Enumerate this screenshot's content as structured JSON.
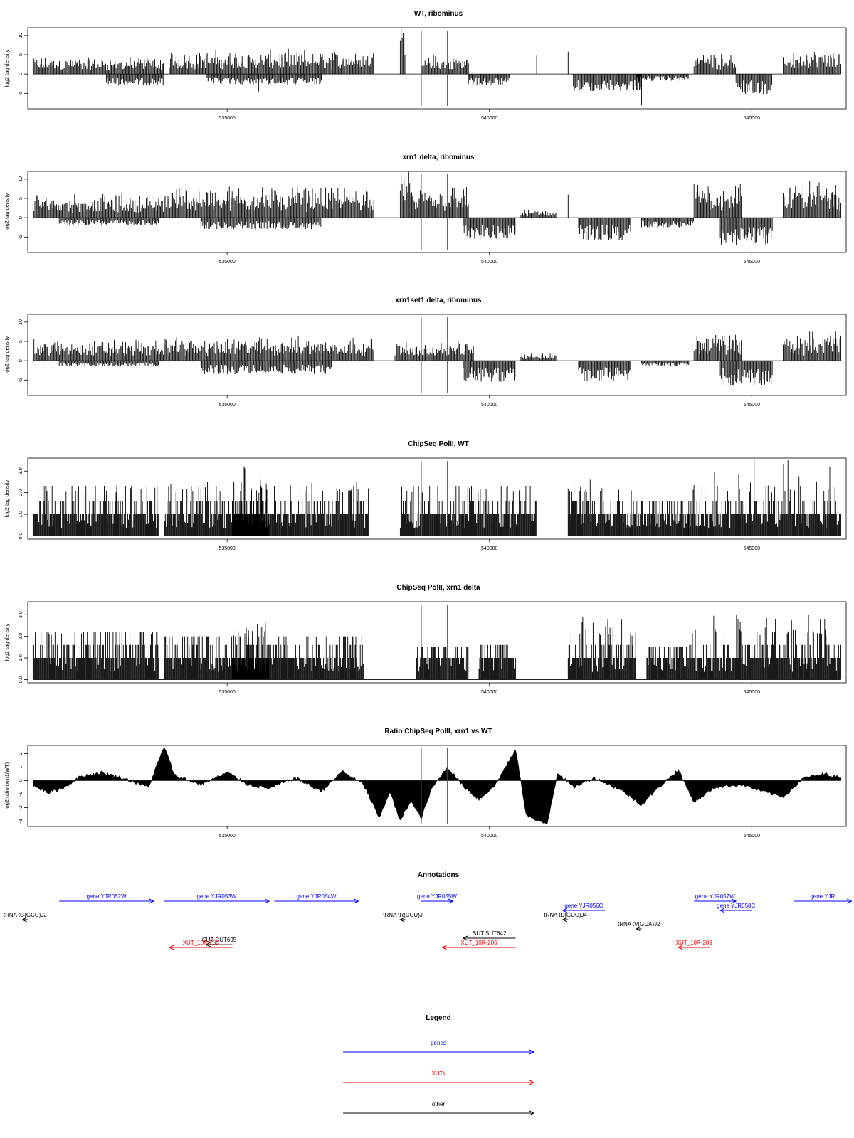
{
  "chart_data": [
    {
      "type": "bar",
      "title": "WT, ribominus",
      "ylabel": "log2 tag density",
      "ylim": [
        -9,
        12
      ],
      "y_ticks": [
        "-5",
        "0",
        "5",
        "10"
      ],
      "xlim": [
        531200,
        546800
      ],
      "x_ticks": [
        "535000",
        "540000",
        "545000"
      ],
      "vlines": [
        538700,
        539200
      ],
      "series": [
        {
          "segments": [
            {
              "start": 531300,
              "end": 533800,
              "mode": "pos",
              "hi": 3.2
            },
            {
              "start": 532700,
              "end": 533800,
              "mode": "neg",
              "hi": 3.0
            },
            {
              "start": 533900,
              "end": 537800,
              "mode": "pos",
              "hi": 4.5
            },
            {
              "start": 534600,
              "end": 536800,
              "mode": "neg",
              "hi": 2.8
            },
            {
              "start": 538300,
              "end": 538400,
              "mode": "pos",
              "hi": 9.0
            },
            {
              "start": 538700,
              "end": 539600,
              "mode": "pos",
              "hi": 3.5
            },
            {
              "start": 539600,
              "end": 540400,
              "mode": "neg",
              "hi": 3.0
            },
            {
              "start": 541600,
              "end": 542900,
              "mode": "neg",
              "hi": 4.5
            },
            {
              "start": 542800,
              "end": 543800,
              "mode": "neg",
              "hi": 1.8
            },
            {
              "start": 543900,
              "end": 544700,
              "mode": "pos",
              "hi": 4.5
            },
            {
              "start": 544700,
              "end": 545400,
              "mode": "neg",
              "hi": 5.2
            },
            {
              "start": 545600,
              "end": 546700,
              "mode": "pos",
              "hi": 4.5
            }
          ],
          "spikes": [
            [
              540900,
              4.8
            ],
            [
              541500,
              5.8
            ],
            [
              542900,
              -8.0
            ],
            [
              535600,
              -4.5
            ]
          ]
        }
      ]
    },
    {
      "type": "bar",
      "title": "xrn1 delta, ribominus",
      "ylabel": "log2 tag density",
      "ylim": [
        -9,
        12
      ],
      "y_ticks": [
        "-5",
        "0",
        "5",
        "10"
      ],
      "xlim": [
        531200,
        546800
      ],
      "x_ticks": [
        "535000",
        "540000",
        "545000"
      ],
      "vlines": [
        538700,
        539200
      ],
      "series": [
        {
          "segments": [
            {
              "start": 531300,
              "end": 533800,
              "mode": "pos",
              "hi": 4.5
            },
            {
              "start": 531800,
              "end": 533700,
              "mode": "neg",
              "hi": 2.0
            },
            {
              "start": 533800,
              "end": 537800,
              "mode": "pos",
              "hi": 6.0
            },
            {
              "start": 534500,
              "end": 536800,
              "mode": "neg",
              "hi": 3.0
            },
            {
              "start": 538300,
              "end": 538500,
              "mode": "pos",
              "hi": 10.5
            },
            {
              "start": 538500,
              "end": 539600,
              "mode": "pos",
              "hi": 6.0
            },
            {
              "start": 539500,
              "end": 540500,
              "mode": "neg",
              "hi": 5.5
            },
            {
              "start": 540600,
              "end": 541300,
              "mode": "pos",
              "hi": 1.5
            },
            {
              "start": 541700,
              "end": 542700,
              "mode": "neg",
              "hi": 6.0
            },
            {
              "start": 542900,
              "end": 543900,
              "mode": "neg",
              "hi": 2.5
            },
            {
              "start": 543900,
              "end": 544800,
              "mode": "pos",
              "hi": 7.0
            },
            {
              "start": 544400,
              "end": 545400,
              "mode": "neg",
              "hi": 7.0
            },
            {
              "start": 545600,
              "end": 546700,
              "mode": "pos",
              "hi": 7.0
            }
          ],
          "spikes": [
            [
              541500,
              6.0
            ],
            [
              546600,
              8.5
            ]
          ]
        }
      ]
    },
    {
      "type": "bar",
      "title": "xrn1set1 delta, ribominus",
      "ylabel": "log2 tag density",
      "ylim": [
        -9,
        12
      ],
      "y_ticks": [
        "-5",
        "0",
        "5",
        "10"
      ],
      "xlim": [
        531200,
        546800
      ],
      "x_ticks": [
        "535000",
        "540000",
        "545000"
      ],
      "vlines": [
        538700,
        539200
      ],
      "series": [
        {
          "segments": [
            {
              "start": 531300,
              "end": 533800,
              "mode": "pos",
              "hi": 4.0
            },
            {
              "start": 531800,
              "end": 533700,
              "mode": "neg",
              "hi": 1.5
            },
            {
              "start": 533800,
              "end": 537800,
              "mode": "pos",
              "hi": 4.5
            },
            {
              "start": 534500,
              "end": 537000,
              "mode": "neg",
              "hi": 3.5
            },
            {
              "start": 538200,
              "end": 539700,
              "mode": "pos",
              "hi": 3.5
            },
            {
              "start": 539500,
              "end": 540500,
              "mode": "neg",
              "hi": 5.5
            },
            {
              "start": 540600,
              "end": 541300,
              "mode": "pos",
              "hi": 1.5
            },
            {
              "start": 541700,
              "end": 542700,
              "mode": "neg",
              "hi": 5.5
            },
            {
              "start": 542900,
              "end": 543800,
              "mode": "neg",
              "hi": 1.5
            },
            {
              "start": 543900,
              "end": 544800,
              "mode": "pos",
              "hi": 5.5
            },
            {
              "start": 544400,
              "end": 545400,
              "mode": "neg",
              "hi": 6.5
            },
            {
              "start": 545600,
              "end": 546700,
              "mode": "pos",
              "hi": 5.5
            }
          ],
          "spikes": [
            [
              546600,
              7.5
            ]
          ]
        }
      ]
    },
    {
      "type": "bar",
      "title": "ChipSeq PolII, WT",
      "ylabel": "log2 tag density",
      "ylim": [
        -0.15,
        3.6
      ],
      "y_ticks": [
        "0.0",
        "1.0",
        "2.0",
        "3.0"
      ],
      "xlim": [
        531200,
        546800
      ],
      "x_ticks": [
        "535000",
        "540000",
        "545000"
      ],
      "vlines": [
        538700,
        539200
      ],
      "series": [
        {
          "segments": [
            {
              "start": 531300,
              "end": 533700,
              "mode": "chip",
              "hi": 2.3
            },
            {
              "start": 533800,
              "end": 537700,
              "mode": "chip",
              "hi": 2.6
            },
            {
              "start": 535100,
              "end": 535800,
              "mode": "chip",
              "hi": 3.3
            },
            {
              "start": 538300,
              "end": 539700,
              "mode": "chip",
              "hi": 2.3
            },
            {
              "start": 539700,
              "end": 540900,
              "mode": "chip",
              "hi": 2.3
            },
            {
              "start": 541500,
              "end": 542800,
              "mode": "chip",
              "hi": 2.7
            },
            {
              "start": 542800,
              "end": 543800,
              "mode": "chip",
              "hi": 1.6
            },
            {
              "start": 543800,
              "end": 546700,
              "mode": "chip",
              "hi": 3.6
            }
          ],
          "spikes": []
        }
      ]
    },
    {
      "type": "bar",
      "title": "ChipSeq PolII, xrn1 delta",
      "ylabel": "log2 tag density",
      "ylim": [
        -0.15,
        3.6
      ],
      "y_ticks": [
        "0.0",
        "1.0",
        "2.0",
        "3.0"
      ],
      "xlim": [
        531200,
        546800
      ],
      "x_ticks": [
        "535000",
        "540000",
        "545000"
      ],
      "vlines": [
        538700,
        539200
      ],
      "series": [
        {
          "segments": [
            {
              "start": 531300,
              "end": 533700,
              "mode": "chip",
              "hi": 2.2
            },
            {
              "start": 533800,
              "end": 537600,
              "mode": "chip",
              "hi": 2.0
            },
            {
              "start": 535100,
              "end": 535800,
              "mode": "chip",
              "hi": 2.7
            },
            {
              "start": 538600,
              "end": 539600,
              "mode": "chip",
              "hi": 1.5
            },
            {
              "start": 539800,
              "end": 540500,
              "mode": "chip",
              "hi": 1.6
            },
            {
              "start": 541500,
              "end": 542800,
              "mode": "chip",
              "hi": 2.9
            },
            {
              "start": 543000,
              "end": 543800,
              "mode": "chip",
              "hi": 1.5
            },
            {
              "start": 543800,
              "end": 546700,
              "mode": "chip",
              "hi": 3.1
            }
          ],
          "spikes": []
        }
      ]
    },
    {
      "type": "area",
      "title": "Ratio ChipSeq PolII, xrn1 vs WT",
      "ylabel": "log2 ratio (xrn1/WT)",
      "ylim": [
        -3.4,
        2.6
      ],
      "y_ticks": [
        "-3",
        "-2",
        "-1",
        "0",
        "1",
        "2"
      ],
      "xlim": [
        531200,
        546800
      ],
      "x_ticks": [
        "535000",
        "540000",
        "545000"
      ],
      "vlines": [
        538700,
        539200
      ],
      "series": [
        {
          "anchors": [
            [
              531300,
              -0.4
            ],
            [
              531600,
              -0.9
            ],
            [
              531900,
              -0.5
            ],
            [
              532200,
              0.3
            ],
            [
              532600,
              0.6
            ],
            [
              533000,
              0.2
            ],
            [
              533500,
              -0.5
            ],
            [
              533800,
              2.5
            ],
            [
              534000,
              0.4
            ],
            [
              534500,
              -0.3
            ],
            [
              535000,
              0.6
            ],
            [
              535400,
              -0.3
            ],
            [
              535800,
              -0.6
            ],
            [
              536300,
              0.2
            ],
            [
              536800,
              -0.8
            ],
            [
              537200,
              0.7
            ],
            [
              537600,
              -0.3
            ],
            [
              537900,
              -2.8
            ],
            [
              538100,
              -0.8
            ],
            [
              538300,
              -3.0
            ],
            [
              538500,
              -1.5
            ],
            [
              538700,
              -2.8
            ],
            [
              538900,
              -0.6
            ],
            [
              539200,
              1.0
            ],
            [
              539500,
              -0.4
            ],
            [
              539800,
              -1.4
            ],
            [
              540100,
              -0.4
            ],
            [
              540500,
              2.3
            ],
            [
              540700,
              -2.5
            ],
            [
              540900,
              -3.0
            ],
            [
              541100,
              -3.2
            ],
            [
              541300,
              0.6
            ],
            [
              541600,
              -0.5
            ],
            [
              542000,
              0.2
            ],
            [
              542500,
              -0.7
            ],
            [
              542900,
              -1.8
            ],
            [
              543200,
              -0.6
            ],
            [
              543600,
              0.8
            ],
            [
              543900,
              -1.6
            ],
            [
              544300,
              -0.5
            ],
            [
              544800,
              -0.3
            ],
            [
              545200,
              -0.8
            ],
            [
              545600,
              -1.2
            ],
            [
              546000,
              0.2
            ],
            [
              546400,
              0.5
            ],
            [
              546700,
              0.2
            ]
          ]
        }
      ]
    }
  ],
  "annotations": {
    "title": "Annotations",
    "genes": [
      {
        "label": "gene YJR052W",
        "x1": 531800,
        "x2": 533600,
        "row": 0
      },
      {
        "label": "gene YJR053W",
        "x1": 533800,
        "x2": 535800,
        "row": 0
      },
      {
        "label": "gene YJR054W",
        "x1": 535900,
        "x2": 537500,
        "row": 0
      },
      {
        "label": "gene YJR055W",
        "x1": 538700,
        "x2": 539300,
        "row": 0
      },
      {
        "label": "gene YJR056C",
        "x1": 542200,
        "x2": 541400,
        "row": 1
      },
      {
        "label": "gene YJR057W",
        "x1": 543900,
        "x2": 544700,
        "row": 0
      },
      {
        "label": "gene YJR058C",
        "x1": 545000,
        "x2": 544400,
        "row": 1
      },
      {
        "label": "gene YJR",
        "x1": 545800,
        "x2": 546900,
        "row": 0
      }
    ],
    "xuts": [
      {
        "label": "XUT_10R-203",
        "x1": 535100,
        "x2": 533900,
        "row": 5
      },
      {
        "label": "XUT_10R-206",
        "x1": 540500,
        "x2": 539100,
        "row": 5
      },
      {
        "label": "XUT_10R-209",
        "x1": 544200,
        "x2": 543600,
        "row": 5
      }
    ],
    "others": [
      {
        "label": "tRNA tG(GCC)J2",
        "x1": 531200,
        "x2": 531100,
        "row": 2
      },
      {
        "label": "tRNA tR(CCU)J",
        "x1": 538400,
        "x2": 538300,
        "row": 2
      },
      {
        "label": "tRNA tD(GUC)J4",
        "x1": 541500,
        "x2": 541400,
        "row": 2
      },
      {
        "label": "tRNA tV(GUA)J2",
        "x1": 542900,
        "x2": 542800,
        "row": 3
      },
      {
        "label": "SUT SUT642",
        "x1": 540500,
        "x2": 539500,
        "row": 4
      },
      {
        "label": "CUT CUT695",
        "x1": 535100,
        "x2": 534600,
        "row": 4.7
      }
    ]
  },
  "legend": {
    "title": "Legend",
    "items": [
      {
        "label": "genes",
        "color": "#0000ff"
      },
      {
        "label": "XUTs",
        "color": "#ff0000"
      },
      {
        "label": "other",
        "color": "#000000"
      }
    ]
  }
}
